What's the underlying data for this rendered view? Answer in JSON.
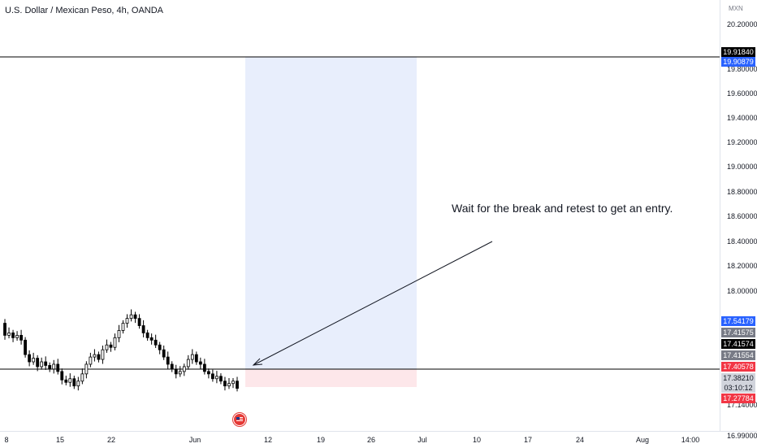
{
  "title": "U.S. Dollar / Mexican Peso, 4h, OANDA",
  "currency_unit": "MXN",
  "annotation_text": "Wait for the break and retest to get an entry.",
  "colors": {
    "candle": "#000000",
    "line": "#000000",
    "target_zone": "#e8eefc",
    "stop_zone": "#fde7ea",
    "tag_blue": "#2962ff",
    "tag_black": "#000000",
    "tag_gray": "#787b86",
    "tag_red": "#f23645",
    "tag_light": "#d1d4dc"
  },
  "price_axis": {
    "labels": [
      "20.20000",
      "19.80000",
      "19.60000",
      "19.40000",
      "19.20000",
      "19.00000",
      "18.80000",
      "18.60000",
      "18.40000",
      "18.20000",
      "18.00000",
      "17.14000",
      "16.99000"
    ],
    "tags": [
      {
        "text": "19.91840",
        "color": "tag_black"
      },
      {
        "text": "19.90879",
        "color": "tag_blue"
      },
      {
        "text": "17.54179",
        "color": "tag_blue"
      },
      {
        "text": "17.41575",
        "color": "tag_gray"
      },
      {
        "text": "17.41574",
        "color": "tag_black"
      },
      {
        "text": "17.41554",
        "color": "tag_gray"
      },
      {
        "text": "17.40578",
        "color": "tag_red"
      },
      {
        "text": "17.38210",
        "color": "tag_light"
      },
      {
        "text": "03:10:12",
        "color": "tag_light"
      },
      {
        "text": "17.27784",
        "color": "tag_red"
      }
    ]
  },
  "time_axis": {
    "labels": [
      "8",
      "15",
      "22",
      "Jun",
      "12",
      "19",
      "26",
      "Jul",
      "10",
      "17",
      "24",
      "Aug",
      "14:00"
    ]
  },
  "chart_data": {
    "type": "candlestick",
    "title": "U.S. Dollar / Mexican Peso, 4h, OANDA",
    "y_unit": "MXN",
    "x_ticks": [
      "8",
      "15",
      "22",
      "Jun",
      "12",
      "19",
      "26",
      "Jul",
      "10",
      "17",
      "24",
      "Aug",
      "14:00"
    ],
    "ylim": [
      16.99,
      20.29
    ],
    "horizontal_levels": [
      19.9184,
      17.4058
    ],
    "target_zone": {
      "from_price": 17.4058,
      "to_price": 19.9184
    },
    "stop_zone": {
      "from_price": 17.2778,
      "to_price": 17.4058
    },
    "close_path": [
      17.92,
      17.82,
      17.84,
      17.8,
      17.82,
      17.78,
      17.66,
      17.6,
      17.63,
      17.56,
      17.6,
      17.57,
      17.54,
      17.58,
      17.52,
      17.45,
      17.43,
      17.46,
      17.4,
      17.44,
      17.5,
      17.58,
      17.64,
      17.66,
      17.62,
      17.7,
      17.74,
      17.72,
      17.8,
      17.86,
      17.92,
      17.96,
      17.99,
      17.96,
      17.9,
      17.84,
      17.8,
      17.78,
      17.74,
      17.7,
      17.64,
      17.58,
      17.54,
      17.5,
      17.52,
      17.56,
      17.62,
      17.66,
      17.6,
      17.58,
      17.52,
      17.5,
      17.46,
      17.48,
      17.44,
      17.4,
      17.42,
      17.44,
      17.38
    ]
  }
}
